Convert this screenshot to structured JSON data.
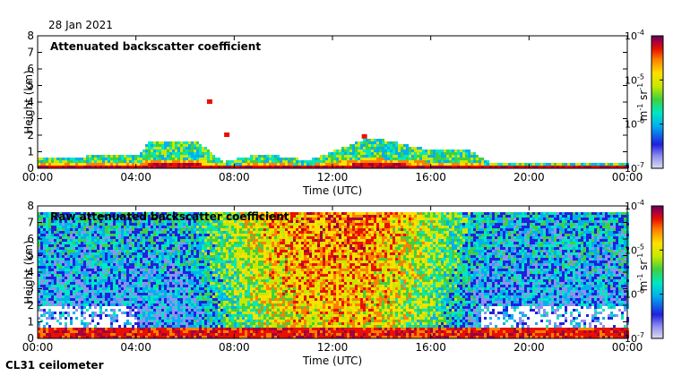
{
  "date": "28 Jan 2021",
  "footer": "CL31 ceilometer",
  "colorbar": {
    "unit_main": "m",
    "unit_exp1": "-1",
    "unit_space": " sr",
    "unit_exp2": "-1",
    "scale": "log",
    "ticks": [
      {
        "mantissa": "10",
        "exp": "-4",
        "value": 0.0001
      },
      {
        "mantissa": "10",
        "exp": "-5",
        "value": 1e-05
      },
      {
        "mantissa": "10",
        "exp": "-6",
        "value": 1e-06
      },
      {
        "mantissa": "10",
        "exp": "-7",
        "value": 1e-07
      }
    ],
    "colors": [
      "#dcdcf0",
      "#9090f0",
      "#2020e0",
      "#00b0f0",
      "#00e8c0",
      "#40d040",
      "#c8e800",
      "#ffe000",
      "#ff8000",
      "#e81000",
      "#a00040",
      "#600060"
    ]
  },
  "chart_data": [
    {
      "type": "heatmap",
      "title": "Attenuated backscatter coefficient",
      "xlabel": "Time (UTC)",
      "ylabel": "Height (km)",
      "x_ticks": [
        "00:00",
        "04:00",
        "08:00",
        "12:00",
        "16:00",
        "20:00",
        "00:00"
      ],
      "y_ticks": [
        "0",
        "1",
        "2",
        "3",
        "4",
        "5",
        "6",
        "7",
        "8"
      ],
      "ylim": [
        0,
        8
      ],
      "xlim_hours": [
        0,
        24
      ],
      "features": {
        "boundary_layer_top_km": [
          [
            0,
            0.6
          ],
          [
            4,
            0.7
          ],
          [
            4.5,
            1.5
          ],
          [
            6.5,
            1.5
          ],
          [
            7.5,
            0.3
          ],
          [
            9,
            0.8
          ],
          [
            11,
            0.4
          ],
          [
            13.5,
            1.8
          ],
          [
            16,
            1.0
          ],
          [
            17.5,
            1.0
          ],
          [
            18.5,
            0.2
          ],
          [
            24,
            0.2
          ]
        ],
        "elevated_returns": [
          [
            7,
            4.0
          ],
          [
            7.7,
            2.0
          ],
          [
            13.3,
            1.9
          ]
        ]
      }
    },
    {
      "type": "heatmap",
      "title": "Raw attenuated backscatter coefficient",
      "xlabel": "Time (UTC)",
      "ylabel": "Height (km)",
      "x_ticks": [
        "00:00",
        "04:00",
        "08:00",
        "12:00",
        "16:00",
        "20:00",
        "00:00"
      ],
      "y_ticks": [
        "0",
        "1",
        "2",
        "3",
        "4",
        "5",
        "6",
        "7",
        "8"
      ],
      "ylim": [
        0,
        8
      ],
      "xlim_hours": [
        0,
        24
      ],
      "features": {
        "noise_max_height_km": 7.6,
        "noise_min_height_km": 1.8
      }
    }
  ]
}
